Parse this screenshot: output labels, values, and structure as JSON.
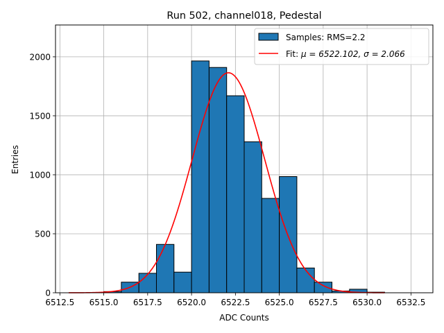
{
  "chart_data": {
    "type": "bar",
    "title": "Run 502, channel018, Pedestal",
    "xlabel": "ADC Counts",
    "ylabel": "Entries",
    "xlim": [
      6512.25,
      6533.75
    ],
    "ylim": [
      0,
      2270
    ],
    "x_ticks": [
      6512.5,
      6515.0,
      6517.5,
      6520.0,
      6522.5,
      6525.0,
      6527.5,
      6530.0,
      6532.5
    ],
    "x_tick_labels": [
      "6512.5",
      "6515.0",
      "6517.5",
      "6520.0",
      "6522.5",
      "6525.0",
      "6527.5",
      "6530.0",
      "6532.5"
    ],
    "y_ticks": [
      0,
      500,
      1000,
      1500,
      2000
    ],
    "y_tick_labels": [
      "0",
      "500",
      "1000",
      "1500",
      "2000"
    ],
    "grid": true,
    "legend_position": "top-right",
    "bar_color": "#1f77b4",
    "fit_color": "#ff0000",
    "histogram": {
      "name": "Samples: RMS=2.2",
      "bins": [
        {
          "x0": 6515,
          "x1": 6516,
          "value": 10
        },
        {
          "x0": 6516,
          "x1": 6517,
          "value": 90
        },
        {
          "x0": 6517,
          "x1": 6518,
          "value": 165
        },
        {
          "x0": 6518,
          "x1": 6519,
          "value": 410
        },
        {
          "x0": 6519,
          "x1": 6520,
          "value": 175
        },
        {
          "x0": 6520,
          "x1": 6521,
          "value": 1965
        },
        {
          "x0": 6521,
          "x1": 6522,
          "value": 1910
        },
        {
          "x0": 6522,
          "x1": 6523,
          "value": 1670
        },
        {
          "x0": 6523,
          "x1": 6524,
          "value": 1280
        },
        {
          "x0": 6524,
          "x1": 6525,
          "value": 800
        },
        {
          "x0": 6525,
          "x1": 6526,
          "value": 985
        },
        {
          "x0": 6526,
          "x1": 6527,
          "value": 210
        },
        {
          "x0": 6527,
          "x1": 6528,
          "value": 90
        },
        {
          "x0": 6528,
          "x1": 6529,
          "value": 15
        },
        {
          "x0": 6529,
          "x1": 6530,
          "value": 30
        },
        {
          "x0": 6530,
          "x1": 6531,
          "value": 5
        }
      ]
    },
    "fit": {
      "name_prefix": "Fit: ",
      "name_math": "μ = 6522.102, σ = 2.066",
      "mu": 6522.102,
      "sigma": 2.066,
      "amplitude": 1865,
      "x_range": [
        6513,
        6531
      ]
    }
  }
}
